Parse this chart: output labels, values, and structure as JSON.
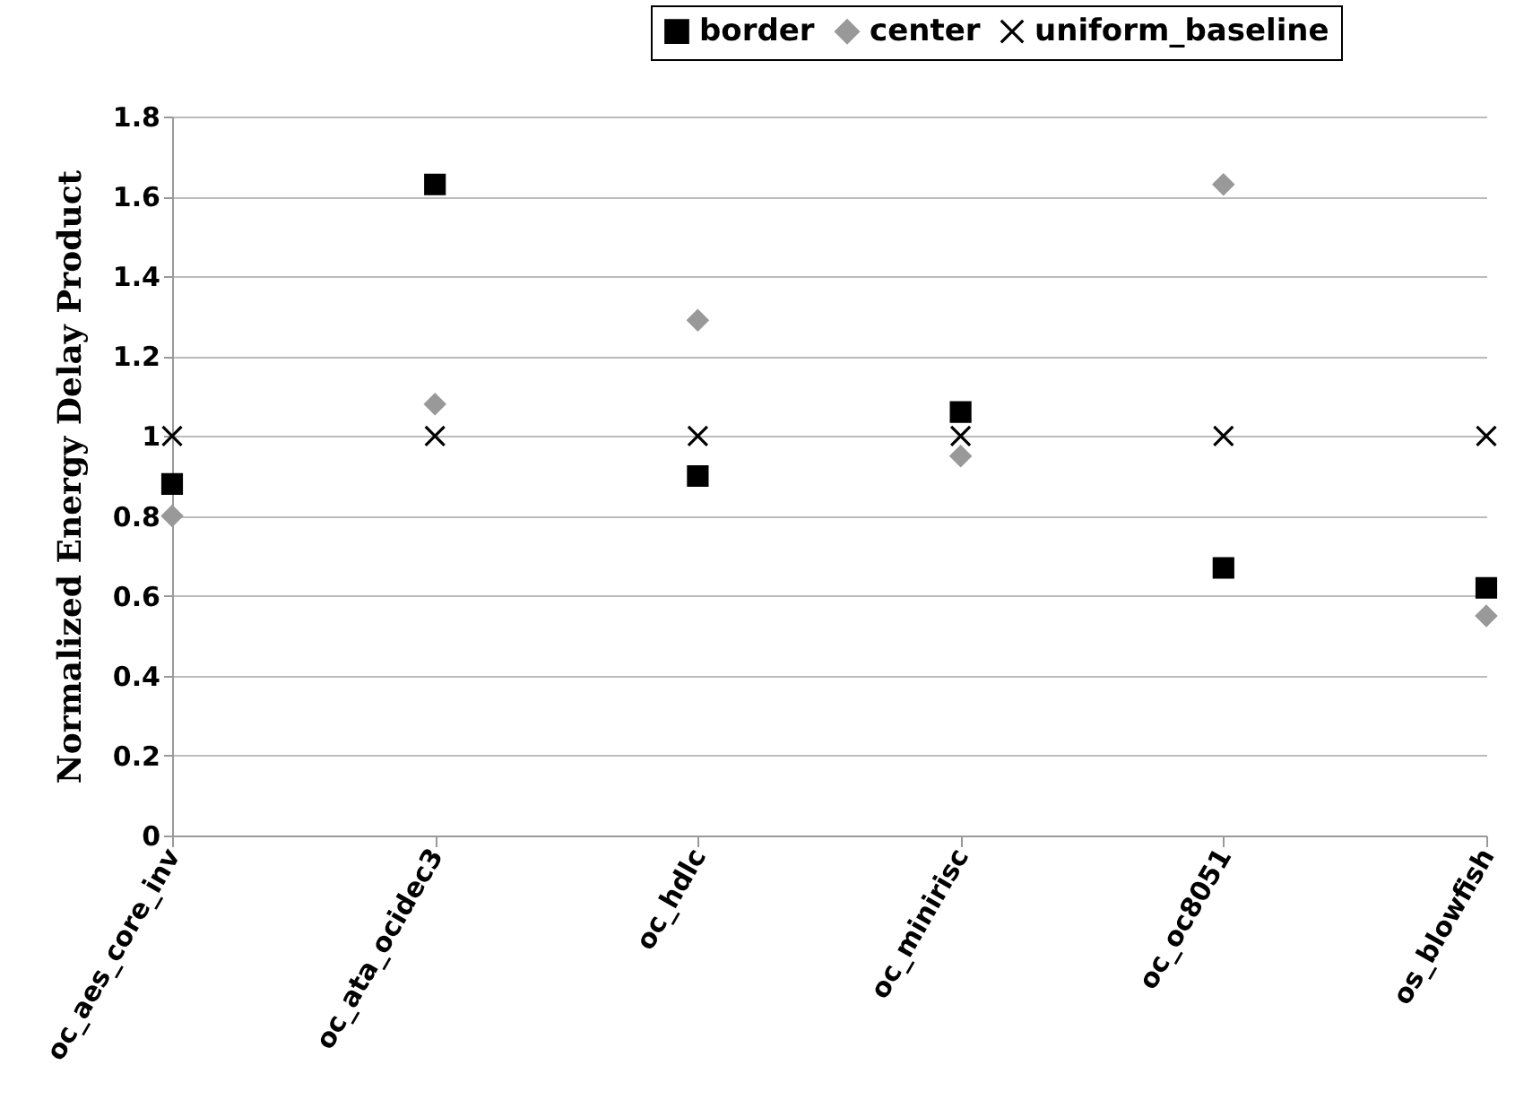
{
  "chart_data": {
    "type": "scatter",
    "ylabel": "Normalized Energy Delay Product",
    "categories": [
      "oc_aes_core_inv",
      "oc_ata_ocidec3",
      "oc_hdlc",
      "oc_minirisc",
      "oc_oc8051",
      "os_blowfish"
    ],
    "series": [
      {
        "name": "border",
        "color": "#000000",
        "marker": "square",
        "values": [
          0.88,
          1.63,
          0.9,
          1.06,
          0.67,
          0.62
        ]
      },
      {
        "name": "center",
        "color": "#999999",
        "marker": "diamond",
        "values": [
          0.8,
          1.08,
          1.29,
          0.95,
          1.63,
          0.55
        ]
      },
      {
        "name": "uniform_baseline",
        "color": "#000000",
        "marker": "cross",
        "values": [
          1,
          1,
          1,
          1,
          1,
          1
        ]
      }
    ],
    "ylim": [
      0,
      1.8
    ],
    "yticks": [
      0,
      0.2,
      0.4,
      0.6,
      0.8,
      1,
      1.2,
      1.4,
      1.6,
      1.8
    ],
    "grid": "y",
    "legend": "top right"
  }
}
